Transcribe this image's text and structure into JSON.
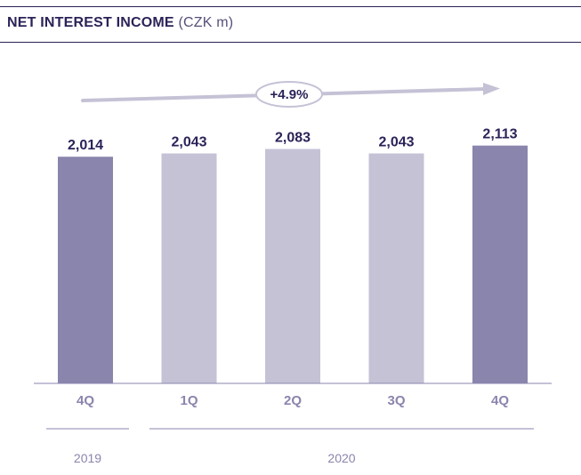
{
  "header": {
    "title": "NET INTEREST INCOME",
    "unit": "(CZK m)"
  },
  "chart_data": {
    "type": "bar",
    "title": "NET INTEREST INCOME (CZK m)",
    "categories": [
      "4Q",
      "1Q",
      "2Q",
      "3Q",
      "4Q"
    ],
    "values": [
      2014,
      2043,
      2083,
      2043,
      2113
    ],
    "value_labels": [
      "2,014",
      "2,043",
      "2,083",
      "2,043",
      "2,113"
    ],
    "year_groups": [
      {
        "label": "2019",
        "categories": [
          "4Q"
        ]
      },
      {
        "label": "2020",
        "categories": [
          "1Q",
          "2Q",
          "3Q",
          "4Q"
        ]
      }
    ],
    "growth_annotation": "+4.9%",
    "colors": {
      "highlight": "#8a85ad",
      "regular": "#c5c2d6",
      "text": "#2b2358",
      "axis_text": "#8a85ad"
    },
    "highlighted": [
      true,
      false,
      false,
      false,
      true
    ],
    "ylim": [
      0,
      2300
    ],
    "grid": false,
    "legend": "none"
  }
}
